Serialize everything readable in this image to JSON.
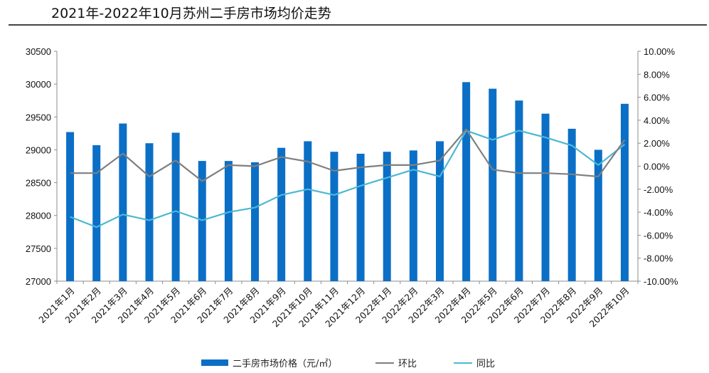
{
  "title": "2021年-2022年10月苏州二手房市场均价走势",
  "colors": {
    "bar": "#0b6fc6",
    "mom": "#7f7f7f",
    "yoy": "#4cb8d4",
    "axis": "#8c8c8c"
  },
  "chart_data": {
    "type": "bar",
    "title": "2021年-2022年10月苏州二手房市场均价走势",
    "categories": [
      "2021年1月",
      "2021年2月",
      "2021年3月",
      "2021年4月",
      "2021年5月",
      "2021年6月",
      "2021年7月",
      "2021年8月",
      "2021年9月",
      "2021年10月",
      "2021年11月",
      "2021年12月",
      "2022年1月",
      "2022年2月",
      "2022年3月",
      "2022年4月",
      "2022年5月",
      "2022年6月",
      "2022年7月",
      "2022年8月",
      "2022年9月",
      "2022年10月"
    ],
    "series": [
      {
        "name": "二手房市场价格（元/㎡）",
        "type": "bar",
        "axis": "left",
        "values": [
          29270,
          29070,
          29400,
          29100,
          29260,
          28830,
          28830,
          28810,
          29030,
          29130,
          28970,
          28940,
          28970,
          28990,
          29130,
          30030,
          29930,
          29750,
          29550,
          29320,
          29000,
          29700
        ]
      },
      {
        "name": "环比",
        "type": "line",
        "axis": "right",
        "values": [
          -0.6,
          -0.6,
          1.1,
          -0.9,
          0.5,
          -1.3,
          0.1,
          0.0,
          0.8,
          0.4,
          -0.4,
          -0.1,
          0.1,
          0.1,
          0.5,
          3.2,
          -0.3,
          -0.6,
          -0.6,
          -0.7,
          -0.9,
          2.3
        ]
      },
      {
        "name": "同比",
        "type": "line",
        "axis": "right",
        "values": [
          -4.4,
          -5.3,
          -4.2,
          -4.7,
          -3.9,
          -4.7,
          -4.0,
          -3.6,
          -2.5,
          -2.0,
          -2.5,
          -1.7,
          -1.0,
          -0.3,
          -0.9,
          3.1,
          2.3,
          3.1,
          2.5,
          1.8,
          0.1,
          1.9
        ]
      }
    ],
    "y_left": {
      "min": 27000,
      "max": 30500,
      "ticks": [
        "27000",
        "27500",
        "28000",
        "28500",
        "29000",
        "29500",
        "30000",
        "30500"
      ]
    },
    "y_right": {
      "min": -10,
      "max": 10,
      "ticks": [
        "-10.00%",
        "-8.00%",
        "-6.00%",
        "-4.00%",
        "-2.00%",
        "0.00%",
        "2.00%",
        "4.00%",
        "6.00%",
        "8.00%",
        "10.00%"
      ]
    },
    "legend_position": "bottom-center"
  }
}
